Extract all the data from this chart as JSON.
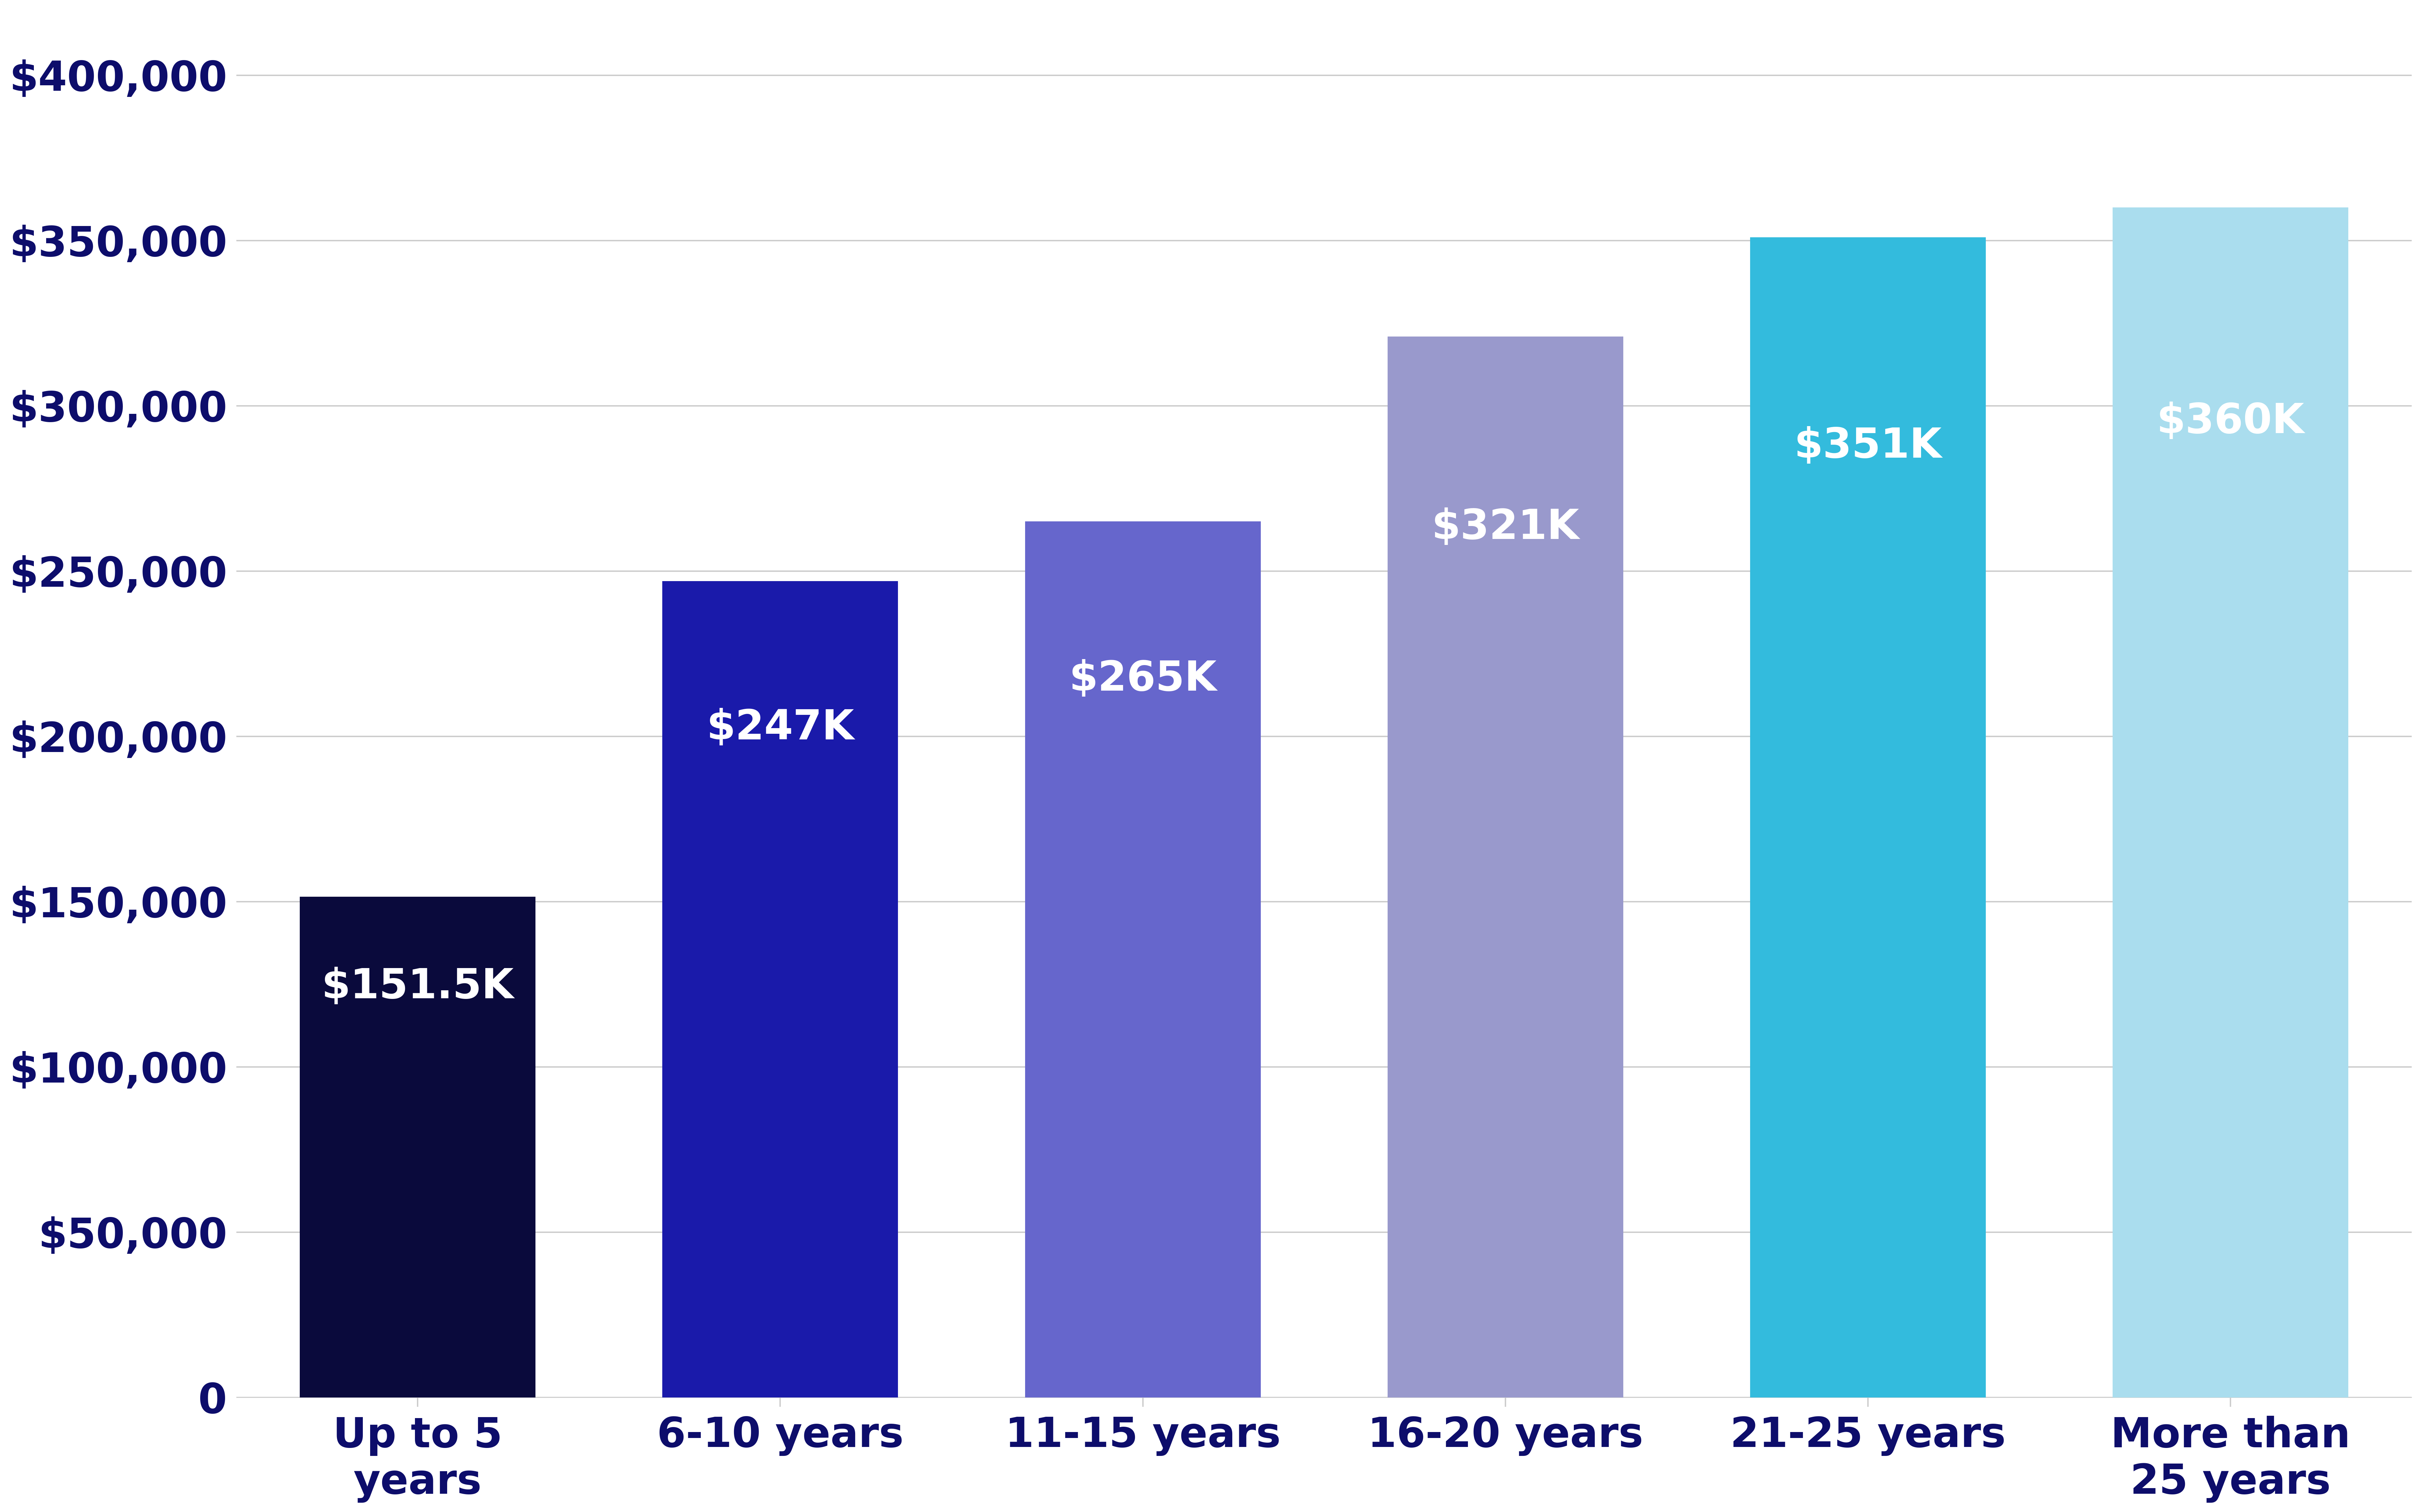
{
  "categories": [
    "Up to 5\nyears",
    "6-10 years",
    "11-15 years",
    "16-20 years",
    "21-25 years",
    "More than\n25 years"
  ],
  "values": [
    151500,
    247000,
    265000,
    321000,
    351000,
    360000
  ],
  "labels": [
    "$151.5K",
    "$247K",
    "$265K",
    "$321K",
    "$351K",
    "$360K"
  ],
  "bar_colors": [
    "#0a0a3c",
    "#1a1aaa",
    "#6666cc",
    "#9999cc",
    "#33bbdd",
    "#aaddee"
  ],
  "yticks": [
    0,
    50000,
    100000,
    150000,
    200000,
    250000,
    300000,
    350000,
    400000
  ],
  "ylim": [
    0,
    420000
  ],
  "ylabel_color": "#0d0d6b",
  "xlabel_color": "#0d0d6b",
  "label_color": "#ffffff",
  "background_color": "#ffffff",
  "bar_label_fontsize": 90,
  "tick_label_fontsize": 90,
  "xlabel_fontsize": 90,
  "grid_color": "#cccccc",
  "grid_linewidth": 3
}
